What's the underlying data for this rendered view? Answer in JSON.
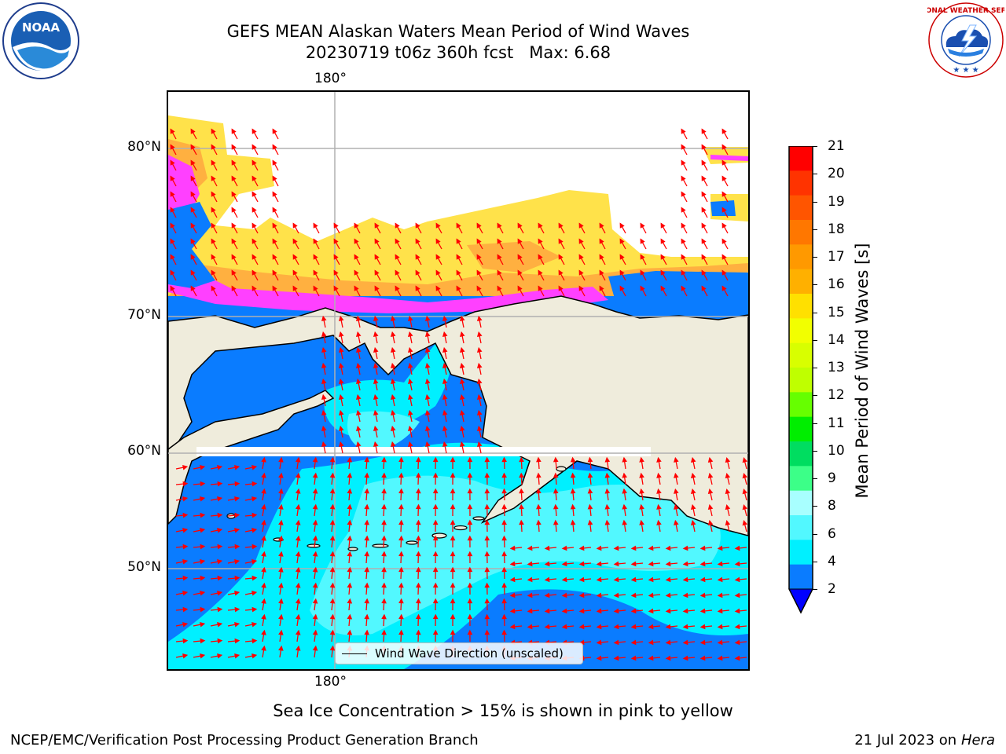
{
  "title": {
    "line1": "GEFS MEAN Alaskan Waters Mean Period of Wind Waves",
    "line2": "20230719 t06z 360h fcst   Max: 6.68"
  },
  "logos": {
    "noaa_text": "NOAA",
    "nws_text": "NATIONAL WEATHER SERVICE"
  },
  "map": {
    "top_lon_label": "180°",
    "bottom_lon_label": "180°",
    "lat_labels": [
      "80°N",
      "70°N",
      "60°N",
      "50°N"
    ],
    "land_color": "#efecdc",
    "ocean_colors": {
      "2-4": "#0a7cff",
      "4-6": "#00f0ff",
      "6-8": "#52f8ff",
      "ice_pink": "#ff40ff",
      "ice_orange": "#ffb040",
      "ice_yellow": "#ffe24a"
    },
    "arrow_color": "#ff0000"
  },
  "legend": {
    "label": "Wind Wave Direction (unscaled)"
  },
  "colorbar": {
    "label": "Mean Period of Wind Waves [s]",
    "ticks": [
      "21",
      "20",
      "19",
      "18",
      "17",
      "16",
      "15",
      "14",
      "13",
      "12",
      "11",
      "10",
      "9",
      "8",
      "6",
      "4",
      "2"
    ],
    "colors": [
      "#ff0000",
      "#ff3300",
      "#ff5500",
      "#ff7700",
      "#ff9900",
      "#ffb000",
      "#ffe000",
      "#f2ff00",
      "#d8ff00",
      "#bfff00",
      "#66ff00",
      "#00ee00",
      "#00dd60",
      "#3cff88",
      "#a8ffff",
      "#52f8ff",
      "#00f0ff",
      "#0a7cff"
    ],
    "under_color": "#0000ff"
  },
  "footer": {
    "note": "Sea Ice Concentration > 15% is shown in pink to yellow",
    "left": "NCEP/EMC/Verification Post Processing Product Generation Branch",
    "date": "21 Jul 2023 on ",
    "machine": "Hera"
  }
}
